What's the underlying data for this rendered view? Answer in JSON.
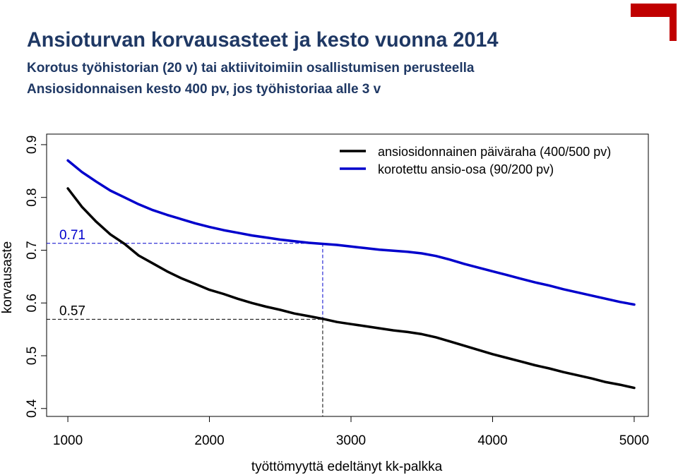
{
  "header": {
    "title": "Ansioturvan korvausasteet ja kesto vuonna 2014",
    "subtitle1": "Korotus työhistorian (20 v) tai aktiivitoimiin osallistumisen perusteella",
    "subtitle2": "Ansiosidonnaisen kesto 400 pv, jos työhistoriaa alle 3 v"
  },
  "colors": {
    "title": "#1f3864",
    "series_black": "#000000",
    "series_blue": "#0000cc",
    "accent_corner": "#c00000"
  },
  "chart_data": {
    "type": "line",
    "xlabel": "työttömyyttä edeltänyt kk-palkka",
    "ylabel": "korvausaste",
    "xlim": [
      850,
      5100
    ],
    "ylim": [
      0.385,
      0.92
    ],
    "x_ticks": [
      1000,
      2000,
      3000,
      4000,
      5000
    ],
    "x_tick_labels": [
      "1000",
      "2000",
      "3000",
      "4000",
      "5000"
    ],
    "y_ticks": [
      0.4,
      0.5,
      0.6,
      0.7,
      0.8,
      0.9
    ],
    "y_tick_labels": [
      "0.4",
      "0.5",
      "0.6",
      "0.7",
      "0.8",
      "0.9"
    ],
    "legend_position": "top-right",
    "grid": false,
    "series": [
      {
        "name": "ansiosidonnainen päiväraha (400/500 pv)",
        "color": "#000000",
        "x": [
          1000,
          1100,
          1200,
          1300,
          1400,
          1500,
          1600,
          1700,
          1800,
          1900,
          2000,
          2100,
          2200,
          2300,
          2400,
          2500,
          2600,
          2700,
          2800,
          2900,
          3000,
          3100,
          3200,
          3300,
          3400,
          3500,
          3600,
          3700,
          3800,
          3900,
          4000,
          4100,
          4200,
          4300,
          4400,
          4500,
          4600,
          4700,
          4800,
          4900,
          5000
        ],
        "y": [
          0.817,
          0.782,
          0.754,
          0.73,
          0.712,
          0.69,
          0.675,
          0.66,
          0.647,
          0.636,
          0.625,
          0.617,
          0.608,
          0.6,
          0.593,
          0.587,
          0.58,
          0.575,
          0.57,
          0.564,
          0.56,
          0.556,
          0.552,
          0.548,
          0.545,
          0.541,
          0.535,
          0.527,
          0.519,
          0.511,
          0.503,
          0.496,
          0.489,
          0.482,
          0.476,
          0.469,
          0.463,
          0.457,
          0.45,
          0.445,
          0.439
        ]
      },
      {
        "name": "korotettu ansio-osa (90/200 pv)",
        "color": "#0000cc",
        "x": [
          1000,
          1100,
          1200,
          1300,
          1400,
          1500,
          1600,
          1700,
          1800,
          1900,
          2000,
          2100,
          2200,
          2300,
          2400,
          2500,
          2600,
          2700,
          2800,
          2900,
          3000,
          3100,
          3200,
          3300,
          3400,
          3500,
          3600,
          3700,
          3800,
          3900,
          4000,
          4100,
          4200,
          4300,
          4400,
          4500,
          4600,
          4700,
          4800,
          4900,
          5000
        ],
        "y": [
          0.87,
          0.848,
          0.83,
          0.813,
          0.8,
          0.787,
          0.776,
          0.767,
          0.759,
          0.751,
          0.744,
          0.738,
          0.733,
          0.728,
          0.724,
          0.72,
          0.717,
          0.714,
          0.712,
          0.71,
          0.707,
          0.704,
          0.701,
          0.699,
          0.697,
          0.694,
          0.689,
          0.682,
          0.674,
          0.667,
          0.66,
          0.653,
          0.646,
          0.639,
          0.633,
          0.626,
          0.62,
          0.614,
          0.608,
          0.602,
          0.597
        ]
      }
    ],
    "annotations": [
      {
        "text": "0.71",
        "color": "#0000cc",
        "x_ref": 2800,
        "y_ref": 0.713
      },
      {
        "text": "0.57",
        "color": "#000000",
        "x_ref": 2800,
        "y_ref": 0.569
      }
    ]
  }
}
